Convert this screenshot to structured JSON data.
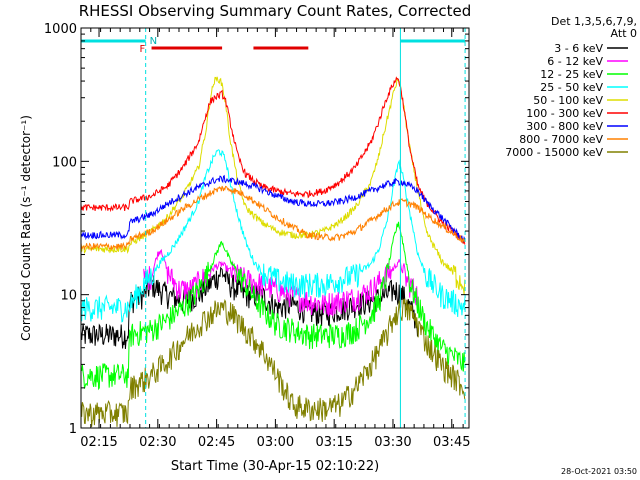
{
  "chart_data": {
    "type": "line",
    "title": "RHESSI Observing Summary Count Rates, Corrected",
    "xlabel": "Start Time (30-Apr-15 02:10:22)",
    "ylabel": "Corrected Count Rate (s⁻¹ detector⁻¹)",
    "yscale": "log",
    "ylim": [
      1,
      1000
    ],
    "xlim_min": [
      0,
      99
    ],
    "x_unit": "minutes after 02:10:22",
    "x_ticks": [
      {
        "m": 4.6,
        "label": "02:15"
      },
      {
        "m": 19.6,
        "label": "02:30"
      },
      {
        "m": 34.6,
        "label": "02:45"
      },
      {
        "m": 49.6,
        "label": "03:00"
      },
      {
        "m": 64.6,
        "label": "03:15"
      },
      {
        "m": 79.6,
        "label": "03:30"
      },
      {
        "m": 94.6,
        "label": "03:45"
      }
    ],
    "y_ticks": [
      {
        "v": 1,
        "label": "1"
      },
      {
        "v": 10,
        "label": "10"
      },
      {
        "v": 100,
        "label": "100"
      },
      {
        "v": 1000,
        "label": "1000"
      }
    ],
    "legend_header": [
      "Det 1,3,5,6,7,9,",
      "Att 0"
    ],
    "legend_position": "right",
    "footer_date": "28-Oct-2021 03:50",
    "annotations": {
      "night_label": "N",
      "flare_label": "F",
      "night_bars": [
        [
          0,
          16.5
        ],
        [
          81.5,
          98
        ]
      ],
      "flare_bars": [
        [
          18,
          36
        ],
        [
          44,
          58
        ]
      ],
      "vlines_cyan_solid": [
        0,
        81.5
      ],
      "vlines_cyan_dashed": [
        16.5,
        98
      ]
    },
    "series": [
      {
        "name": "3 - 6 keV",
        "color": "#000000",
        "x": [
          0,
          12,
          12.5,
          16,
          18,
          22,
          26,
          30,
          34,
          36,
          38,
          42,
          46,
          50,
          54,
          58,
          62,
          66,
          70,
          74,
          78,
          80,
          82,
          84,
          86
        ],
        "values": [
          5,
          5,
          9,
          10,
          12,
          10,
          9,
          10,
          13,
          15,
          12,
          10,
          10,
          8,
          8.5,
          7.5,
          7.2,
          7.8,
          8.5,
          9,
          10,
          11,
          10,
          8,
          6
        ]
      },
      {
        "name": "6 - 12 keV",
        "color": "#ff00ff",
        "x": [
          16,
          18,
          19.5,
          20.5,
          22,
          25,
          28,
          32,
          34,
          36,
          38,
          42,
          46,
          50,
          54,
          58,
          62,
          66,
          70,
          74,
          78,
          80,
          81,
          83,
          86
        ],
        "values": [
          13,
          14,
          20,
          22,
          15,
          11,
          11,
          14,
          16,
          17,
          15,
          13,
          12,
          11,
          10,
          9,
          8.5,
          9,
          9.5,
          11,
          14,
          16,
          18,
          13,
          10
        ]
      },
      {
        "name": "12 - 25 keV",
        "color": "#00ff00",
        "x": [
          0,
          12,
          12.5,
          18,
          22,
          26,
          30,
          33,
          35,
          36,
          38,
          42,
          46,
          50,
          54,
          58,
          62,
          66,
          70,
          74,
          76,
          78,
          80,
          81,
          82,
          84,
          88,
          92,
          98
        ],
        "values": [
          2.5,
          2.5,
          5,
          5.5,
          6.5,
          8,
          11,
          16,
          22,
          25,
          18,
          12,
          8,
          6,
          5.5,
          5,
          5,
          5,
          5.5,
          7,
          9,
          14,
          28,
          35,
          26,
          12,
          6,
          4,
          3
        ]
      },
      {
        "name": "25 - 50 keV",
        "color": "#00ffff",
        "x": [
          0,
          10,
          12,
          16,
          18,
          20,
          22,
          24,
          26,
          28,
          30,
          32,
          34,
          35,
          36,
          37,
          38,
          40,
          42,
          44,
          46,
          50,
          54,
          58,
          62,
          66,
          70,
          74,
          76,
          78,
          80,
          81,
          82,
          84,
          86,
          88,
          92,
          98
        ],
        "values": [
          8,
          8,
          8,
          12,
          14,
          17,
          20,
          24,
          30,
          38,
          50,
          80,
          110,
          120,
          115,
          100,
          70,
          40,
          25,
          18,
          15,
          13,
          12,
          12,
          12,
          13,
          14,
          17,
          22,
          35,
          70,
          100,
          80,
          40,
          20,
          14,
          10,
          8
        ]
      },
      {
        "name": "50 - 100 keV",
        "color": "#dddd00",
        "x": [
          0,
          12,
          12.5,
          18,
          22,
          26,
          30,
          32,
          33,
          34,
          35,
          36,
          37,
          38,
          40,
          42,
          46,
          50,
          54,
          58,
          62,
          66,
          70,
          74,
          76,
          78,
          80,
          81,
          82,
          84,
          86,
          88,
          92,
          98
        ],
        "values": [
          22,
          22,
          24,
          30,
          38,
          55,
          90,
          180,
          300,
          400,
          420,
          380,
          260,
          150,
          70,
          45,
          35,
          30,
          28,
          28,
          30,
          35,
          45,
          70,
          110,
          200,
          350,
          420,
          300,
          120,
          60,
          30,
          18,
          12
        ]
      },
      {
        "name": "100 - 300 keV",
        "color": "#ff0000",
        "x": [
          0,
          12,
          12.5,
          18,
          22,
          26,
          30,
          32,
          33,
          34,
          36,
          37,
          38,
          40,
          42,
          46,
          50,
          54,
          58,
          62,
          66,
          70,
          74,
          76,
          78,
          80,
          81,
          82,
          84,
          86,
          88,
          92,
          98
        ],
        "values": [
          45,
          45,
          50,
          55,
          65,
          90,
          140,
          230,
          280,
          300,
          320,
          280,
          200,
          110,
          80,
          65,
          60,
          57,
          57,
          60,
          70,
          90,
          140,
          200,
          300,
          400,
          420,
          300,
          120,
          65,
          50,
          35,
          25
        ]
      },
      {
        "name": "300 - 800 keV",
        "color": "#0000ff",
        "x": [
          0,
          12,
          12.5,
          18,
          22,
          26,
          30,
          34,
          36,
          38,
          42,
          46,
          50,
          54,
          58,
          62,
          66,
          70,
          74,
          76,
          78,
          80,
          82,
          84,
          86,
          88,
          92,
          98
        ],
        "values": [
          28,
          28,
          35,
          40,
          48,
          56,
          64,
          72,
          74,
          72,
          68,
          62,
          55,
          50,
          48,
          48,
          50,
          54,
          60,
          64,
          67,
          70,
          70,
          65,
          60,
          50,
          38,
          25
        ]
      },
      {
        "name": "800 - 7000 keV",
        "color": "#ff8000",
        "x": [
          0,
          12,
          12.5,
          18,
          22,
          26,
          30,
          34,
          36,
          38,
          42,
          46,
          50,
          54,
          58,
          62,
          66,
          70,
          74,
          76,
          78,
          80,
          82,
          84,
          86,
          88,
          92,
          98
        ],
        "values": [
          23,
          23,
          26,
          30,
          36,
          44,
          52,
          60,
          63,
          62,
          56,
          46,
          38,
          32,
          28,
          27,
          27,
          30,
          36,
          40,
          44,
          48,
          50,
          48,
          45,
          40,
          33,
          25
        ]
      },
      {
        "name": "7000 - 15000 keV",
        "color": "#808000",
        "x": [
          0,
          12,
          12.5,
          18,
          22,
          26,
          30,
          34,
          36,
          38,
          42,
          46,
          50,
          54,
          58,
          62,
          66,
          70,
          74,
          78,
          80,
          82,
          84,
          86,
          88,
          92,
          98
        ],
        "values": [
          1.3,
          1.3,
          2.0,
          2.5,
          3.2,
          4.5,
          6,
          7.5,
          8,
          7.5,
          5.5,
          4,
          2.5,
          1.5,
          1.4,
          1.4,
          1.5,
          2,
          3,
          5,
          7,
          8,
          7.5,
          6,
          4.5,
          3,
          2
        ]
      }
    ]
  }
}
